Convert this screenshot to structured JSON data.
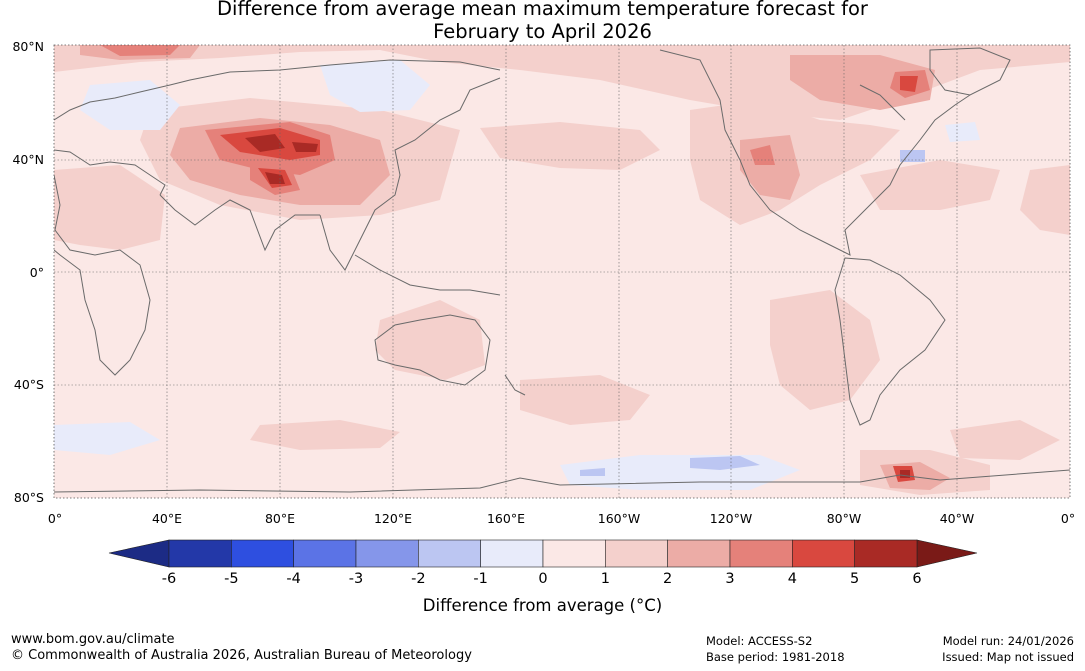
{
  "title": {
    "line1": "Difference from average mean maximum temperature forecast for",
    "line2": "February to April 2026"
  },
  "map": {
    "lat_labels": [
      "80°N",
      "40°N",
      "0°",
      "40°S",
      "80°S"
    ],
    "lon_labels": [
      "0°",
      "40°E",
      "80°E",
      "120°E",
      "160°E",
      "160°W",
      "120°W",
      "80°W",
      "40°W",
      "0°"
    ]
  },
  "colorbar": {
    "ticks": [
      "-6",
      "-5",
      "-4",
      "-3",
      "-2",
      "-1",
      "0",
      "1",
      "2",
      "3",
      "4",
      "5",
      "6"
    ],
    "colors": [
      "#2338a8",
      "#2e4fe0",
      "#5b73e6",
      "#8596ea",
      "#bcc6f2",
      "#e8ebfa",
      "#fbe8e6",
      "#f4d0cc",
      "#ecaca6",
      "#e5817a",
      "#d9483f",
      "#a92a25"
    ],
    "low_extend_color": "#1c2b85",
    "high_extend_color": "#7a1a17",
    "label": "Difference from average (°C)"
  },
  "footer": {
    "website": "www.bom.gov.au/climate",
    "copyright": "© Commonwealth of Australia 2026, Australian Bureau of Meteorology",
    "model": "Model: ACCESS-S2",
    "base_period": "Base period: 1981-2018",
    "model_run": "Model run: 24/01/2026",
    "issued": "Issued: Map not issued"
  }
}
